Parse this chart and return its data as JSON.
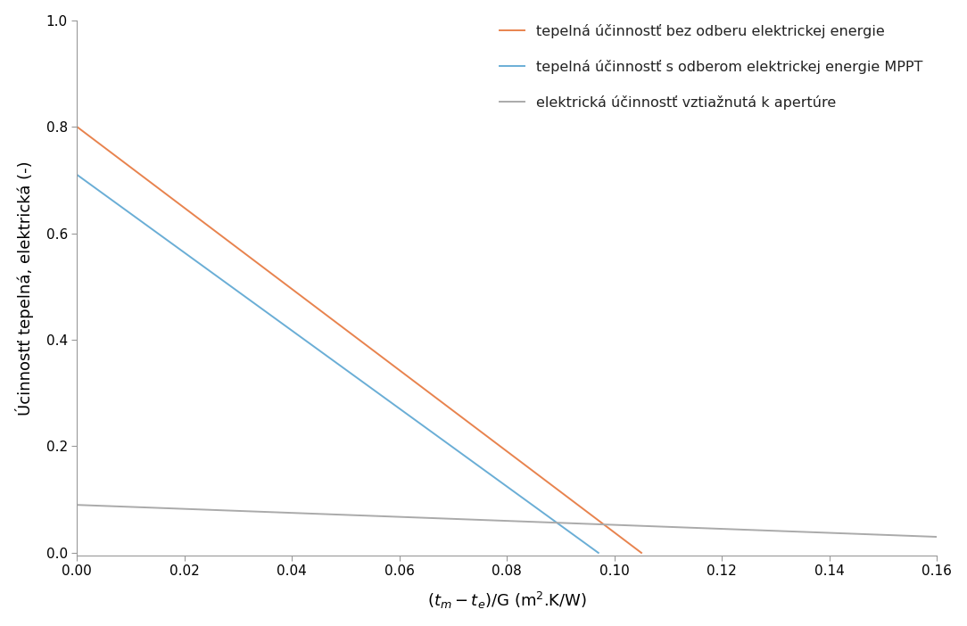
{
  "title": "",
  "xlabel": "$(t_m - t_e)$/G (m$^2$.K/W)",
  "ylabel": "Úcinnostť tepelná, elektrická (-)",
  "xlim": [
    0.0,
    0.16
  ],
  "ylim": [
    -0.005,
    1.0
  ],
  "yticks": [
    0.0,
    0.2,
    0.4,
    0.6,
    0.8,
    1.0
  ],
  "xticks": [
    0.0,
    0.02,
    0.04,
    0.06,
    0.08,
    0.1,
    0.12,
    0.14,
    0.16
  ],
  "orange_line": {
    "x": [
      0.0,
      0.105
    ],
    "y": [
      0.8,
      0.0
    ],
    "color": "#E8834E",
    "label": "tepelná účinnostť bez odberu elektrickej energie",
    "linewidth": 1.4
  },
  "blue_line": {
    "x": [
      0.0,
      0.097
    ],
    "y": [
      0.71,
      0.0
    ],
    "color": "#6AAED6",
    "label": "tepelná účinnostť s odberom elektrickej energie MPPT",
    "linewidth": 1.4
  },
  "gray_line": {
    "x": [
      0.0,
      0.16
    ],
    "y": [
      0.09,
      0.03
    ],
    "color": "#AAAAAA",
    "label": "elektrická účinnostť vztiažnutá k apertúre",
    "linewidth": 1.4
  },
  "background_color": "#FFFFFF",
  "legend_fontsize": 11.5,
  "axis_fontsize": 13,
  "tick_fontsize": 11
}
